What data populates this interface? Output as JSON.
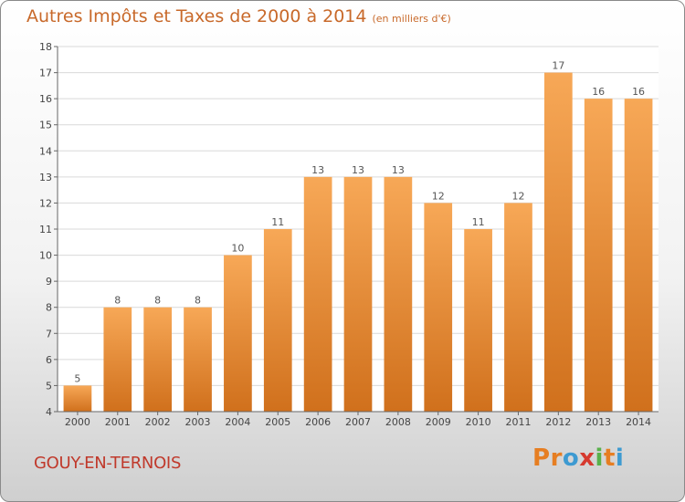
{
  "header": {
    "title": "Autres Impôts et Taxes de 2000 à 2014",
    "unit": "(en milliers d'€)"
  },
  "footer": {
    "town": "GOUY-EN-TERNOIS",
    "logo_text": "Proxiti"
  },
  "colors": {
    "bar_light": "#f7a857",
    "bar_dark": "#d0701c",
    "title": "#c8692a",
    "town": "#c0392b",
    "logo": [
      "#e67e22",
      "#e67e22",
      "#3d9ad1",
      "#d63a2f",
      "#58b14a",
      "#e67e22",
      "#3d9ad1"
    ]
  },
  "chart_data": {
    "type": "bar",
    "categories": [
      "2000",
      "2001",
      "2002",
      "2003",
      "2004",
      "2005",
      "2006",
      "2007",
      "2008",
      "2009",
      "2010",
      "2011",
      "2012",
      "2013",
      "2014"
    ],
    "values": [
      5,
      8,
      8,
      8,
      10,
      11,
      13,
      13,
      13,
      12,
      11,
      12,
      17,
      16,
      16
    ],
    "ylim": [
      4,
      18
    ],
    "yticks": [
      4,
      5,
      6,
      7,
      8,
      9,
      10,
      11,
      12,
      13,
      14,
      15,
      16,
      17,
      18
    ],
    "grid": true
  }
}
